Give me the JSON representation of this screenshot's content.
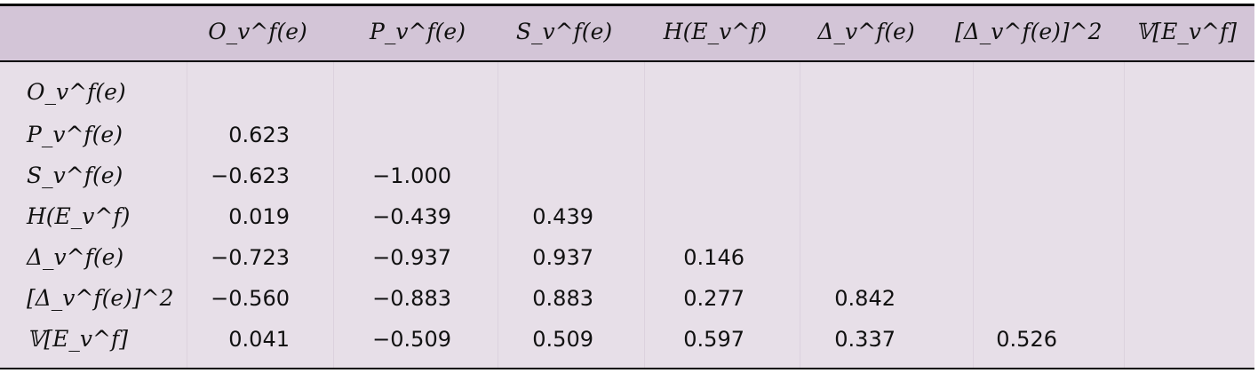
{
  "table": {
    "columns": [
      "O_v^f(e)",
      "P_v^f(e)",
      "S_v^f(e)",
      "H(E_v^f)",
      "Δ_v^f(e)",
      "[Δ_v^f(e)]^2",
      "𝕍[E_v^f]"
    ],
    "rows": [
      {
        "label": "O_v^f(e)",
        "values": []
      },
      {
        "label": "P_v^f(e)",
        "values": [
          "0.623"
        ]
      },
      {
        "label": "S_v^f(e)",
        "values": [
          "−0.623",
          "−1.000"
        ]
      },
      {
        "label": "H(E_v^f)",
        "values": [
          "0.019",
          "−0.439",
          "0.439"
        ]
      },
      {
        "label": "Δ_v^f(e)",
        "values": [
          "−0.723",
          "−0.937",
          "0.937",
          "0.146"
        ]
      },
      {
        "label": "[Δ_v^f(e)]^2",
        "values": [
          "−0.560",
          "−0.883",
          "0.883",
          "0.277",
          "0.842"
        ]
      },
      {
        "label": "𝕍[E_v^f]",
        "values": [
          "0.041",
          "−0.509",
          "0.509",
          "0.597",
          "0.337",
          "0.526"
        ]
      }
    ]
  },
  "colors": {
    "header_bg": "#d3c5d7",
    "body_bg": "#e7dfe8",
    "rule": "#000000"
  }
}
